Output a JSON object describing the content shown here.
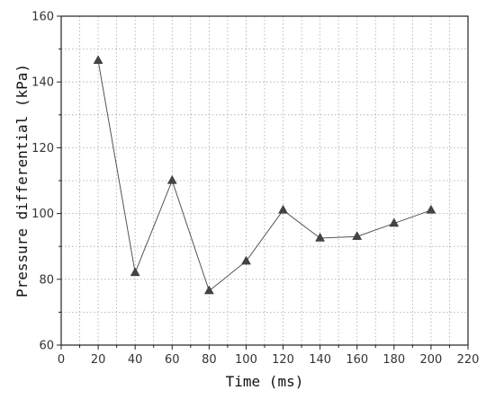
{
  "chart_data": {
    "type": "line",
    "title": "",
    "xlabel": "Time (ms)",
    "ylabel": "Pressure differential (kPa)",
    "xlim": [
      0,
      220
    ],
    "ylim": [
      60,
      160
    ],
    "x_ticks": [
      0,
      20,
      40,
      60,
      80,
      100,
      120,
      140,
      160,
      180,
      200,
      220
    ],
    "y_ticks": [
      60,
      80,
      100,
      120,
      140,
      160
    ],
    "grid": true,
    "marker": "triangle",
    "series": [
      {
        "x": [
          20,
          40,
          60,
          80,
          100,
          120,
          140,
          160,
          180,
          200
        ],
        "y": [
          146.5,
          82,
          110,
          76.5,
          85.5,
          101,
          92.5,
          93,
          97,
          101
        ]
      }
    ]
  }
}
